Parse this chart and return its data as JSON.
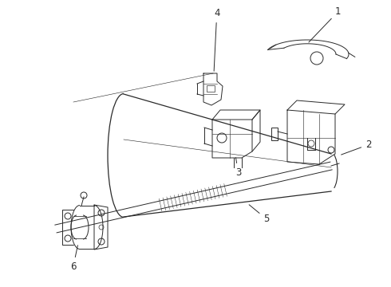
{
  "bg_color": "#ffffff",
  "line_color": "#2a2a2a",
  "label_color": "#000000",
  "fig_width": 4.9,
  "fig_height": 3.6,
  "dpi": 100,
  "lw": 0.7
}
